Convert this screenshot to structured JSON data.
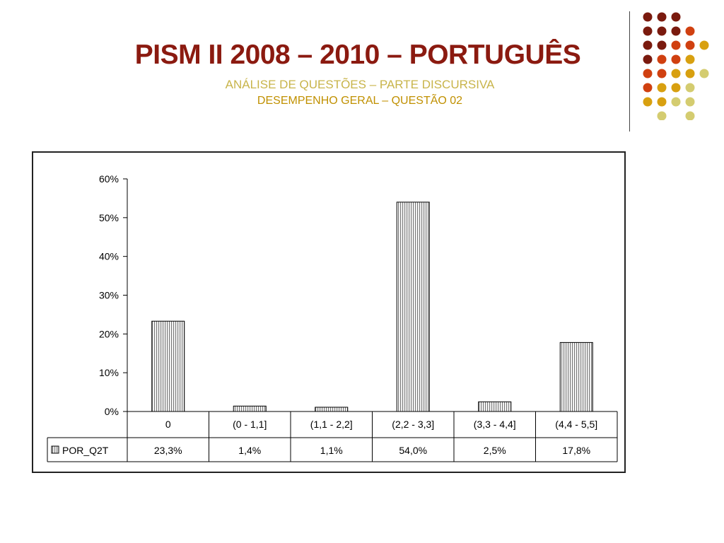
{
  "slide": {
    "title": "PISM II 2008 – 2010 – PORTUGUÊS",
    "subtitle1": "ANÁLISE DE QUESTÕES – PARTE DISCURSIVA",
    "subtitle2": "DESEMPENHO GERAL – QUESTÃO 02"
  },
  "colors": {
    "title": "#8b1a10",
    "subtitle1": "#c8b44a",
    "subtitle2": "#c09000",
    "dot_palette": [
      "#7a1a0e",
      "#d04010",
      "#d8a010",
      "#d4cc70"
    ]
  },
  "chart_data": {
    "type": "bar",
    "categories": [
      "0",
      "(0 - 1,1]",
      "(1,1 - 2,2]",
      "(2,2 - 3,3]",
      "(3,3 - 4,4]",
      "(4,4 - 5,5]"
    ],
    "series": [
      {
        "name": "POR_Q2T",
        "values": [
          23.3,
          1.4,
          1.1,
          54.0,
          2.5,
          17.8
        ]
      }
    ],
    "table_values": [
      "23,3%",
      "1,4%",
      "1,1%",
      "54,0%",
      "2,5%",
      "17,8%"
    ],
    "ylim": [
      0,
      60
    ],
    "y_ticks": [
      "0%",
      "10%",
      "20%",
      "30%",
      "40%",
      "50%",
      "60%"
    ],
    "legend_placement": "data-table",
    "grid": false
  }
}
